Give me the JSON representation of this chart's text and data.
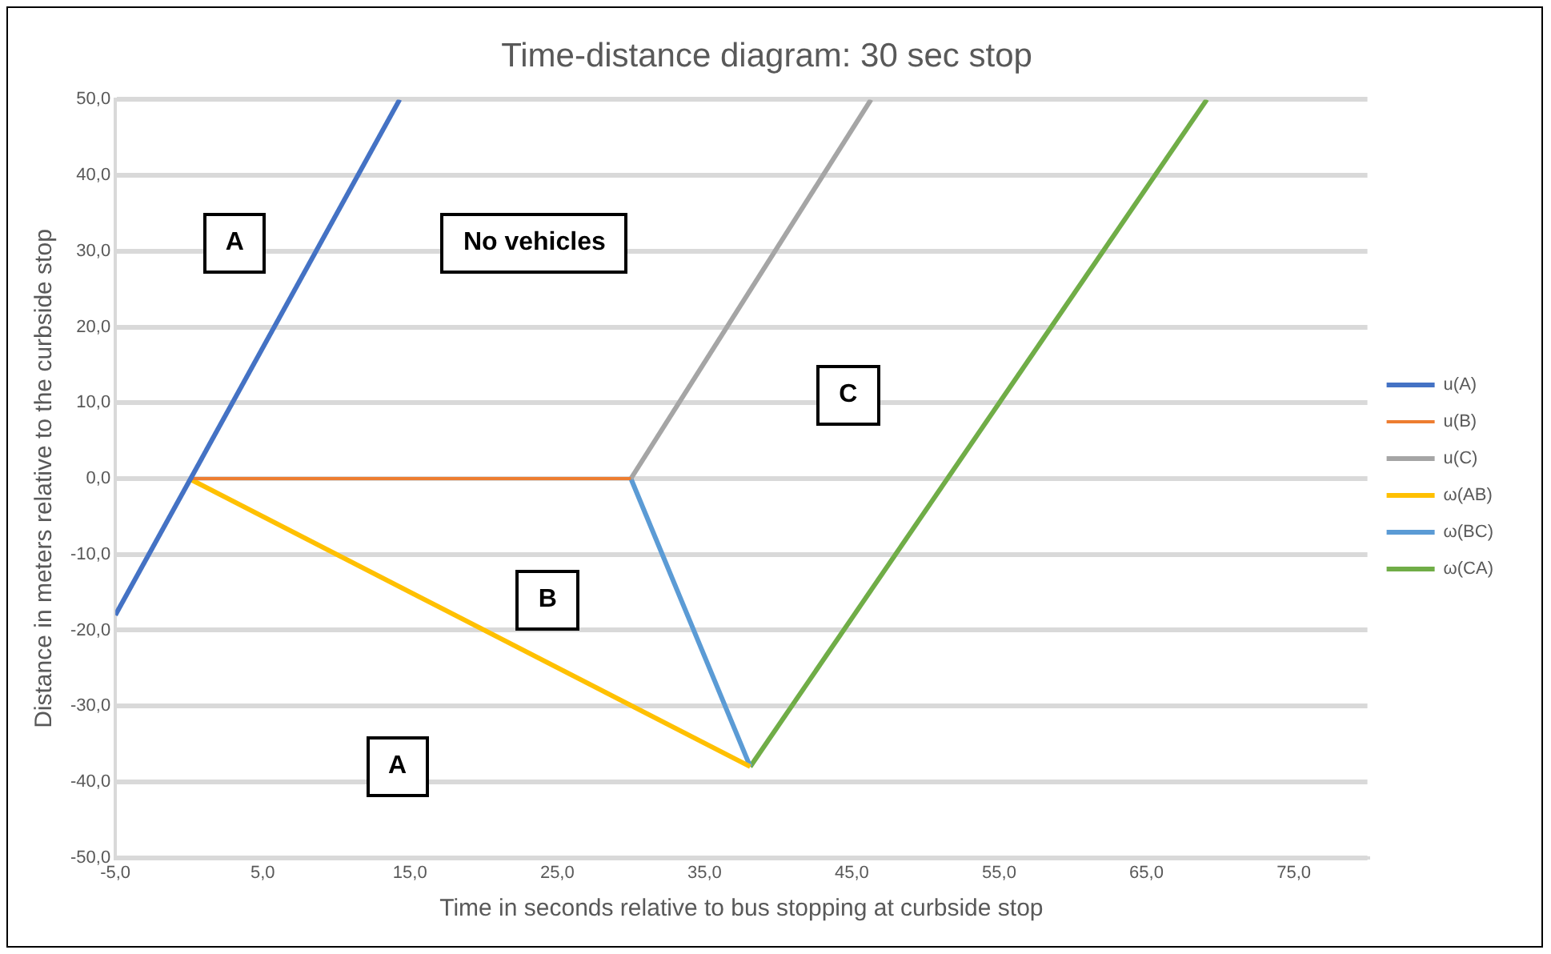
{
  "chart_data": {
    "type": "line",
    "title": "Time-distance diagram: 30 sec stop",
    "xlabel": "Time in seconds relative to bus stopping at curbside stop",
    "ylabel": "Distance in meters relative to the curbside stop",
    "xlim": [
      -5,
      80
    ],
    "xticks": [
      {
        "value": -5,
        "label": "-5,0"
      },
      {
        "value": 5,
        "label": "5,0"
      },
      {
        "value": 15,
        "label": "15,0"
      },
      {
        "value": 25,
        "label": "25,0"
      },
      {
        "value": 35,
        "label": "35,0"
      },
      {
        "value": 45,
        "label": "45,0"
      },
      {
        "value": 55,
        "label": "55,0"
      },
      {
        "value": 65,
        "label": "65,0"
      },
      {
        "value": 75,
        "label": "75,0"
      }
    ],
    "ylim": [
      -50,
      50
    ],
    "yticks": [
      {
        "value": -50,
        "label": "-50,0"
      },
      {
        "value": -40,
        "label": "-40,0"
      },
      {
        "value": -30,
        "label": "-30,0"
      },
      {
        "value": -20,
        "label": "-20,0"
      },
      {
        "value": -10,
        "label": "-10,0"
      },
      {
        "value": 0,
        "label": "0,0"
      },
      {
        "value": 10,
        "label": "10,0"
      },
      {
        "value": 20,
        "label": "20,0"
      },
      {
        "value": 30,
        "label": "30,0"
      },
      {
        "value": 40,
        "label": "40,0"
      },
      {
        "value": 50,
        "label": "50,0"
      }
    ],
    "grid": "y",
    "legend": "right",
    "marker": "none",
    "line_style": "solid",
    "series": [
      {
        "name": "u(A)",
        "color": "#4472c4",
        "x": [
          -5,
          14.3
        ],
        "values": [
          -18,
          50
        ]
      },
      {
        "name": "u(B)",
        "color": "#ed7d31",
        "x": [
          0,
          30
        ],
        "values": [
          0,
          0
        ]
      },
      {
        "name": "u(C)",
        "color": "#a5a5a5",
        "x": [
          30,
          46.3
        ],
        "values": [
          0,
          50
        ]
      },
      {
        "name": "ω(AB)",
        "color": "#ffc000",
        "x": [
          0,
          38.1
        ],
        "values": [
          0,
          -38
        ]
      },
      {
        "name": "ω(BC)",
        "color": "#5b9bd5",
        "x": [
          30,
          38.1
        ],
        "values": [
          0,
          -38
        ]
      },
      {
        "name": "ω(CA)",
        "color": "#70ad47",
        "x": [
          38.1,
          69.1
        ],
        "values": [
          -38,
          50
        ]
      }
    ],
    "annotations": [
      "A",
      "No vehicles",
      "C",
      "B",
      "A"
    ]
  }
}
